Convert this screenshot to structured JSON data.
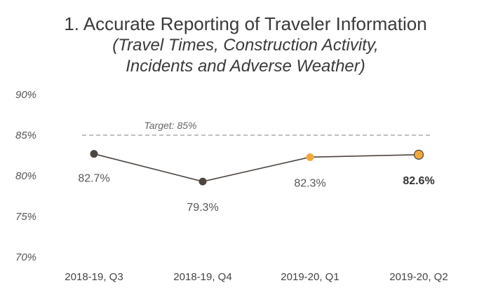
{
  "title": "1. Accurate Reporting of Traveler Information",
  "subtitle_line1": "(Travel Times, Construction Activity,",
  "subtitle_line2": "Incidents and Adverse Weather)",
  "chart_data": {
    "type": "line",
    "categories": [
      "2018-19, Q3",
      "2018-19, Q4",
      "2019-20, Q1",
      "2019-20, Q2"
    ],
    "values": [
      82.7,
      79.3,
      82.3,
      82.6
    ],
    "data_labels": [
      "82.7%",
      "79.3%",
      "82.3%",
      "82.6%"
    ],
    "ylim": [
      70,
      90
    ],
    "yticks": [
      90,
      85,
      80,
      75,
      70
    ],
    "ytick_labels": [
      "90%",
      "85%",
      "80%",
      "75%",
      "70%"
    ],
    "target": {
      "value": 85,
      "label": "Target: 85%"
    },
    "point_colors": [
      "#4d4540",
      "#4d4540",
      "#f2a93b",
      "#f2a93b"
    ],
    "colors": {
      "line": "#4d4540",
      "target": "#9a9a9a",
      "highlight": "#f2a93b"
    },
    "grid": false,
    "legend": "none"
  }
}
